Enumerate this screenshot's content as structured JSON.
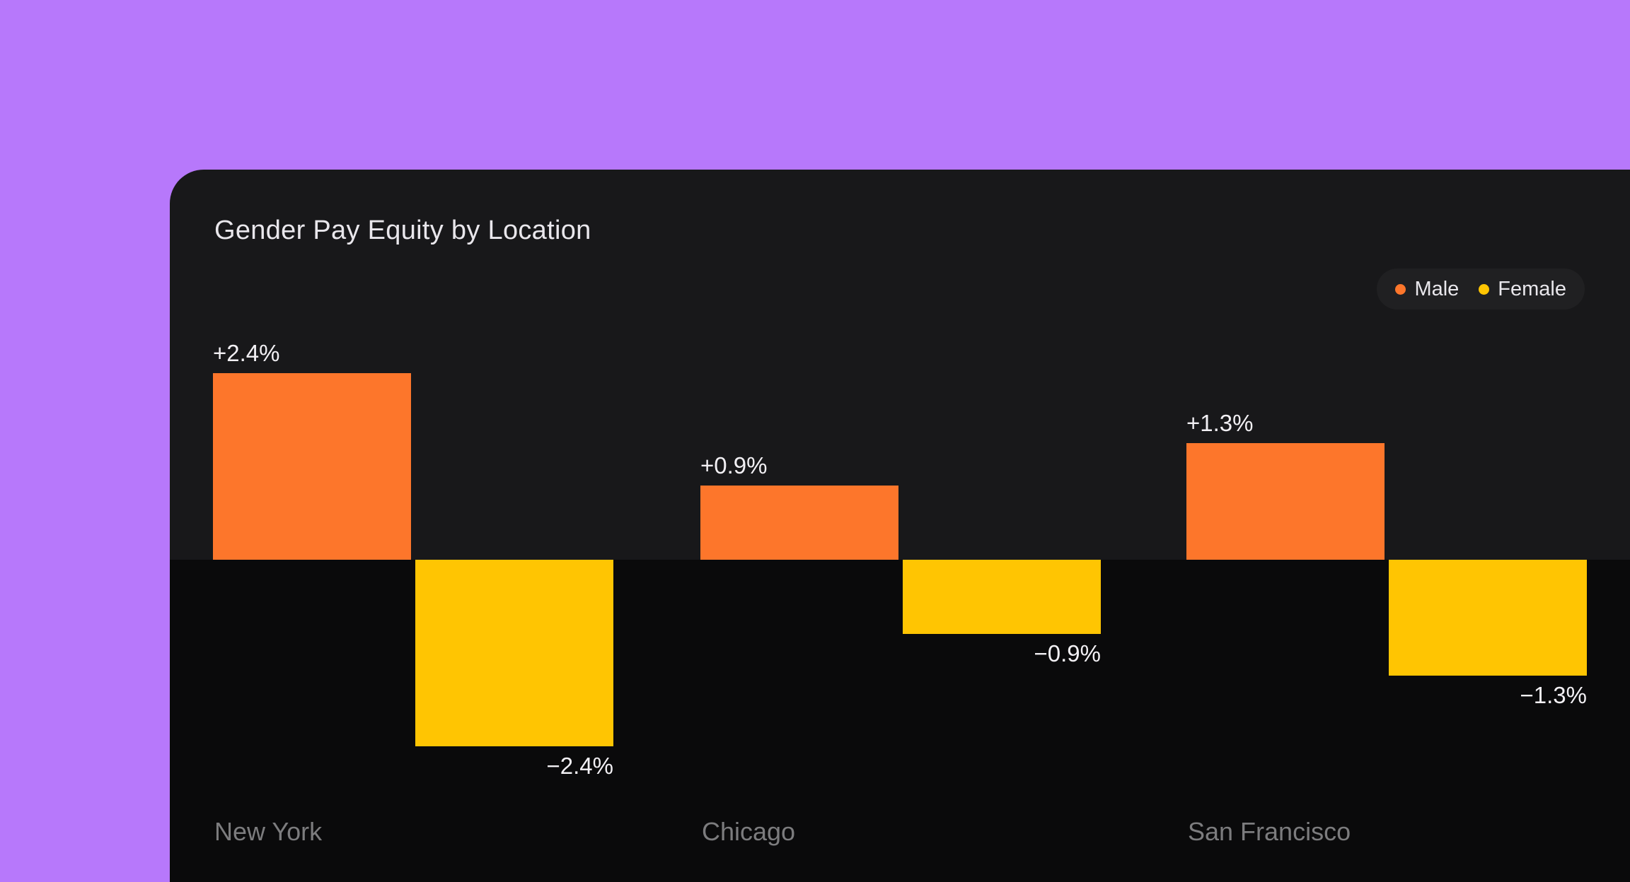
{
  "page": {
    "background_color": "#b778fb",
    "card_background_color": "#18181a",
    "negative_region_color": "#0a0a0b"
  },
  "chart_data": {
    "type": "bar",
    "subtype": "grouped-diverging",
    "title": "Gender Pay Equity by Location",
    "unit": "%",
    "categories": [
      "New York",
      "Chicago",
      "San Francisco"
    ],
    "series": [
      {
        "name": "Male",
        "color": "#fd762b",
        "values": [
          2.4,
          0.9,
          1.3
        ],
        "labels": [
          "+2.4%",
          "+0.9%",
          "+1.3%"
        ]
      },
      {
        "name": "Female",
        "color": "#ffc502",
        "values": [
          -2.4,
          -0.9,
          -1.3
        ],
        "labels": [
          "−2.4%",
          "−0.9%",
          "−1.3%"
        ]
      }
    ],
    "baseline": 0,
    "ylim": [
      -2.4,
      2.4
    ],
    "grid": false,
    "axes_visible": false,
    "legend_position": "top-right",
    "value_label_color": "#f2f0f4",
    "category_label_color": "#7c7c7e",
    "legend": [
      {
        "name": "Male",
        "color": "#fd762b"
      },
      {
        "name": "Female",
        "color": "#ffc502"
      }
    ]
  }
}
